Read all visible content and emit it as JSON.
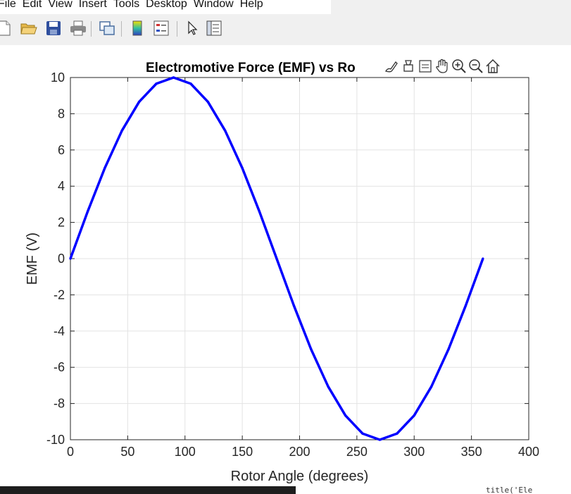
{
  "menubar": {
    "items": [
      "File",
      "Edit",
      "View",
      "Insert",
      "Tools",
      "Desktop",
      "Window",
      "Help"
    ]
  },
  "toolbar": {
    "icons": [
      "new-figure-icon",
      "open-file-icon",
      "save-icon",
      "print-icon",
      "link-plot-icon",
      "insert-colorbar-icon",
      "insert-legend-icon",
      "edit-plot-icon",
      "property-inspector-icon"
    ]
  },
  "axes_toolbar": {
    "icons": [
      "brush-icon",
      "data-tips-icon",
      "pan-icon",
      "zoom-in-icon",
      "zoom-out-icon",
      "restore-view-icon"
    ]
  },
  "colors": {
    "line": "#0000ff",
    "grid": "#e3e3e3",
    "axes": "#262626"
  },
  "chart_data": {
    "type": "line",
    "title": "Electromotive Force (EMF) vs Rotor Angle",
    "title_visible": "Electromotive Force (EMF) vs Ro",
    "xlabel": "Rotor Angle (degrees)",
    "ylabel": "EMF (V)",
    "xlim": [
      0,
      400
    ],
    "ylim": [
      -10,
      10
    ],
    "xticks": [
      0,
      50,
      100,
      150,
      200,
      250,
      300,
      350,
      400
    ],
    "yticks": [
      -10,
      -8,
      -6,
      -4,
      -2,
      0,
      2,
      4,
      6,
      8,
      10
    ],
    "grid": true,
    "series": [
      {
        "x": [
          0,
          15,
          30,
          45,
          60,
          75,
          90,
          105,
          120,
          135,
          150,
          165,
          180,
          195,
          210,
          225,
          240,
          255,
          270,
          285,
          300,
          315,
          330,
          345,
          360
        ],
        "values": [
          0,
          2.59,
          5.0,
          7.07,
          8.66,
          9.66,
          10.0,
          9.66,
          8.66,
          7.07,
          5.0,
          2.59,
          0,
          -2.59,
          -5.0,
          -7.07,
          -8.66,
          -9.66,
          -10.0,
          -9.66,
          -8.66,
          -7.07,
          -5.0,
          -2.59,
          0
        ]
      }
    ]
  },
  "bottom_strip": {
    "text": "title('Ele"
  }
}
